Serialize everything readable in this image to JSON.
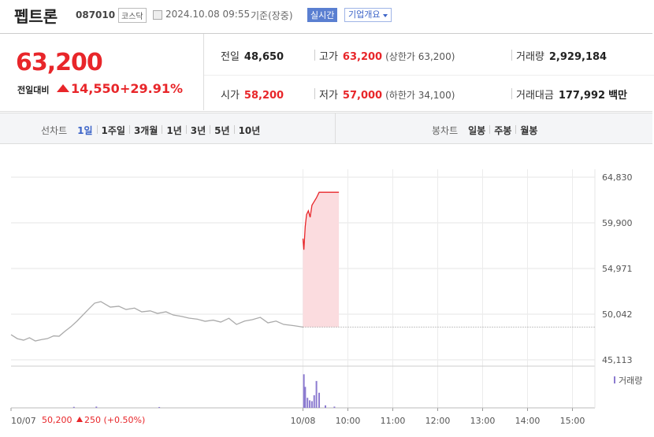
{
  "header": {
    "name": "펩트론",
    "code": "087010",
    "market": "코스닥",
    "datetime": "2024.10.08 09:55",
    "basis": "기준(장중)",
    "realtime": "실시간",
    "company": "기업개요"
  },
  "price": {
    "current": "63,200",
    "change_label": "전일대비",
    "change": "14,550",
    "change_pct": "+29.91%"
  },
  "stats": [
    [
      {
        "label": "전일",
        "value": "48,650"
      },
      {
        "label": "고가",
        "value": "63,200",
        "note": "(상한가 63,200)"
      },
      {
        "label": "거래량",
        "value": "2,929,184"
      }
    ],
    [
      {
        "label": "시가",
        "value": "58,200"
      },
      {
        "label": "저가",
        "value": "57,000",
        "note": "(하한가 34,100)"
      },
      {
        "label": "거래대금",
        "value": "177,992",
        "note": "백만"
      }
    ]
  ],
  "tabs": {
    "line_label": "선차트",
    "line": [
      "1일",
      "1주일",
      "3개월",
      "1년",
      "3년",
      "5년",
      "10년"
    ],
    "candle_label": "봉차트",
    "candle": [
      "일봉",
      "주봉",
      "월봉"
    ]
  },
  "chart_data": {
    "type": "line",
    "xlim": [
      0,
      13
    ],
    "ylim": [
      44690,
      65680
    ],
    "yticks": [
      {
        "value": 64830,
        "label": "64,830"
      },
      {
        "value": 59900,
        "label": "59,900"
      },
      {
        "value": 54971,
        "label": "54,971"
      },
      {
        "value": 50042,
        "label": "50,042"
      },
      {
        "value": 45113,
        "label": "45,113"
      }
    ],
    "xticks": [
      {
        "value": 0,
        "label": "10/07"
      },
      {
        "value": 6.5,
        "label": "10/08"
      },
      {
        "value": 7.5,
        "label": "10:00"
      },
      {
        "value": 8.5,
        "label": "11:00"
      },
      {
        "value": 9.5,
        "label": "12:00"
      },
      {
        "value": 10.5,
        "label": "13:00"
      },
      {
        "value": 11.5,
        "label": "14:00"
      },
      {
        "value": 12.5,
        "label": "15:00"
      }
    ],
    "grid": true,
    "series": [
      {
        "color": "#aaaaaa",
        "x": [
          0,
          0.14,
          0.28,
          0.41,
          0.54,
          0.68,
          0.81,
          0.95,
          1.07,
          1.2,
          1.33,
          1.47,
          1.6,
          1.73,
          1.86,
          2,
          2.21,
          2.4,
          2.56,
          2.75,
          2.91,
          3.1,
          3.26,
          3.45,
          3.61,
          3.8,
          3.96,
          4.15,
          4.32,
          4.5,
          4.67,
          4.85,
          5.02,
          5.2,
          5.37,
          5.55,
          5.72,
          5.9,
          6.07,
          6.3,
          6.5
        ],
        "values": [
          47830,
          47400,
          47235,
          47500,
          47150,
          47300,
          47405,
          47700,
          47660,
          48200,
          48680,
          49300,
          49955,
          50600,
          51230,
          51400,
          50805,
          50900,
          50550,
          50700,
          50295,
          50400,
          50125,
          50300,
          49955,
          49800,
          49615,
          49500,
          49275,
          49400,
          49190,
          49600,
          48935,
          49300,
          49445,
          49700,
          49105,
          49300,
          48935,
          48800,
          48650
        ]
      },
      {
        "color": "#e8262a",
        "fill": "#fbdcdf",
        "x": [
          6.5,
          6.52,
          6.55,
          6.58,
          6.62,
          6.66,
          6.7,
          6.75,
          6.8,
          6.86,
          7.0,
          7.2,
          7.3
        ],
        "values": [
          58200,
          57000,
          59500,
          60800,
          61200,
          60500,
          61800,
          62200,
          62600,
          63200,
          63200,
          63200,
          63200
        ]
      }
    ],
    "base": 48650,
    "base_color": "#888888",
    "volume": {
      "label": "거래량",
      "color": "#8c7bd0",
      "ylim": [
        0,
        450000
      ],
      "x": [
        1.4,
        1.9,
        3.3,
        6.52,
        6.55,
        6.6,
        6.65,
        6.7,
        6.75,
        6.8,
        6.86,
        7.0,
        7.2
      ],
      "values": [
        12000,
        15000,
        10000,
        400000,
        250000,
        120000,
        90000,
        80000,
        150000,
        320000,
        180000,
        30000,
        15000
      ]
    }
  },
  "footer": {
    "close": "50,200",
    "change": "250",
    "pct": "(+0.50%)"
  }
}
